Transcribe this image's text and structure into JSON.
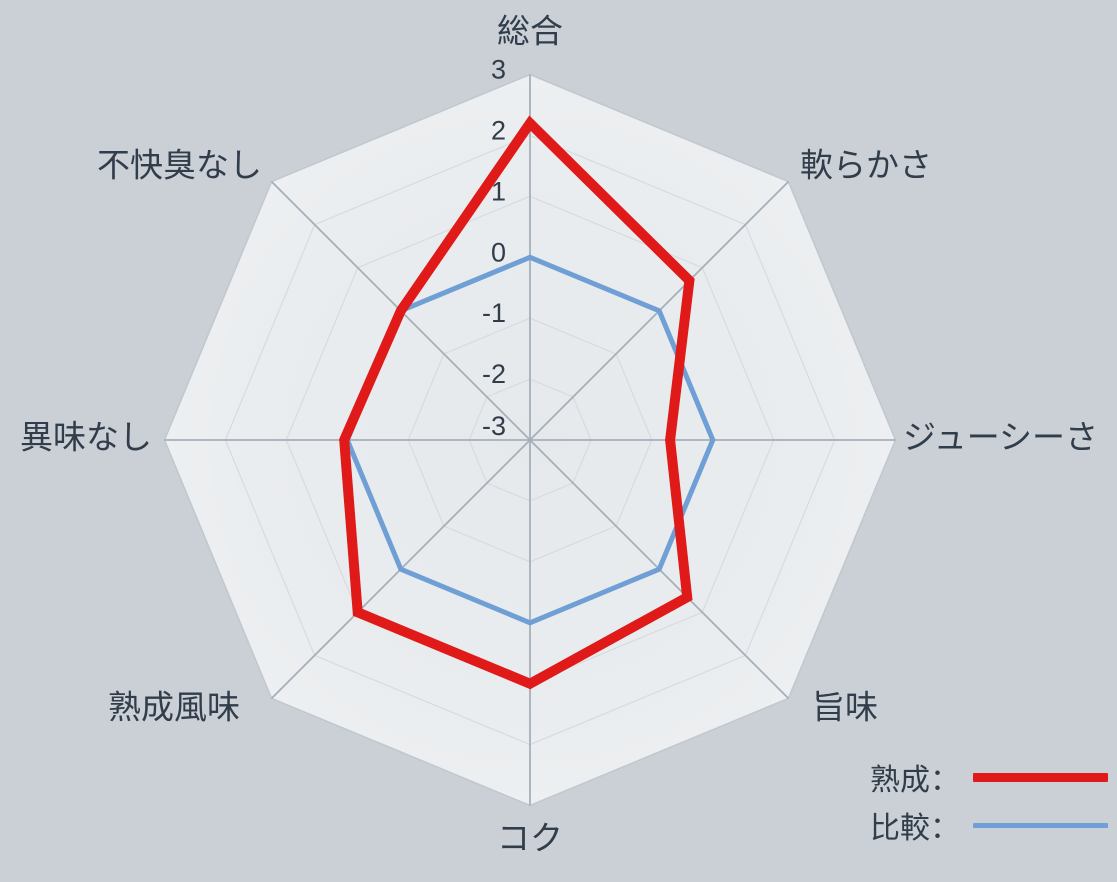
{
  "chart_data": {
    "type": "radar",
    "title": "",
    "categories": [
      "総合",
      "軟らかさ",
      "ジューシーさ",
      "旨味",
      "コク",
      "熟成風味",
      "異味なし",
      "不快臭なし"
    ],
    "series": [
      {
        "name": "熟成",
        "color": "#e01919",
        "stroke_width": 10,
        "values": [
          2.2,
          0.7,
          -0.7,
          0.65,
          1.0,
          1.0,
          0.05,
          0.0
        ]
      },
      {
        "name": "比較",
        "color": "#6f9fd4",
        "stroke_width": 5,
        "values": [
          0.0,
          0.0,
          0.0,
          0.0,
          0.0,
          0.0,
          0.0,
          0.0
        ]
      }
    ],
    "scale": {
      "min": -3,
      "max": 3,
      "step": 1,
      "tick_labels": [
        "3",
        "2",
        "1",
        "0",
        "-1",
        "-2",
        "-3"
      ]
    },
    "grid": true,
    "legend_position": "bottom-right",
    "start_axis": "top",
    "direction": "clockwise"
  },
  "legend": {
    "items": [
      {
        "label": "熟成：",
        "color": "#e01919",
        "thickness": 9
      },
      {
        "label": "比較：",
        "color": "#6f9fd4",
        "thickness": 5
      }
    ]
  },
  "colors": {
    "background": "#cad0d5",
    "plot_fill_center": "#e5e9ec",
    "plot_fill_edge": "#f0f2f4",
    "grid_ring": "#d7dbdf",
    "axis_spoke": "#a6afb9",
    "outer_border": "#c0c8ce",
    "text": "#323d4c"
  }
}
